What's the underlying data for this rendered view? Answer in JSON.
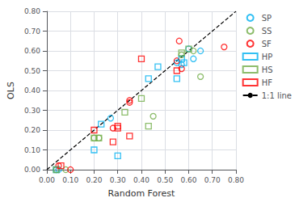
{
  "chart_data": {
    "type": "scatter",
    "xlabel": "Random Forest",
    "ylabel": "OLS",
    "series": [
      {
        "name": "SP",
        "color": "#00b0f0",
        "marker": "circle",
        "x": [
          0.04,
          0.05,
          0.27,
          0.55,
          0.57,
          0.6,
          0.62,
          0.65
        ],
        "values": [
          0.0,
          0.0,
          0.26,
          0.54,
          0.53,
          0.61,
          0.56,
          0.6
        ]
      },
      {
        "name": "SS",
        "color": "#70ad47",
        "marker": "circle",
        "x": [
          0.04,
          0.08,
          0.2,
          0.22,
          0.45,
          0.57,
          0.62,
          0.65
        ],
        "values": [
          0.0,
          0.0,
          0.16,
          0.16,
          0.27,
          0.58,
          0.6,
          0.47
        ]
      },
      {
        "name": "SF",
        "color": "#ff0000",
        "marker": "circle",
        "x": [
          0.05,
          0.1,
          0.28,
          0.35,
          0.35,
          0.55,
          0.56,
          0.57,
          0.75
        ],
        "values": [
          0.02,
          0.0,
          0.21,
          0.35,
          0.34,
          0.55,
          0.65,
          0.51,
          0.62
        ]
      },
      {
        "name": "HP",
        "color": "#00b0f0",
        "marker": "square",
        "x": [
          0.04,
          0.2,
          0.23,
          0.3,
          0.43,
          0.47,
          0.55,
          0.57,
          0.58
        ],
        "values": [
          0.0,
          0.1,
          0.23,
          0.07,
          0.46,
          0.52,
          0.46,
          0.56,
          0.54
        ]
      },
      {
        "name": "HS",
        "color": "#70ad47",
        "marker": "square",
        "x": [
          0.04,
          0.2,
          0.22,
          0.33,
          0.4,
          0.43,
          0.57,
          0.6
        ],
        "values": [
          0.0,
          0.16,
          0.16,
          0.29,
          0.36,
          0.22,
          0.59,
          0.61
        ]
      },
      {
        "name": "HF",
        "color": "#ff0000",
        "marker": "square",
        "x": [
          0.06,
          0.2,
          0.28,
          0.3,
          0.3,
          0.35,
          0.4,
          0.55
        ],
        "values": [
          0.02,
          0.2,
          0.14,
          0.21,
          0.22,
          0.17,
          0.56,
          0.5
        ]
      },
      {
        "name": "1:1 line",
        "type": "line",
        "line_style": "dashed",
        "color": "#000000",
        "x": [
          0,
          0.8
        ],
        "values": [
          0,
          0.8
        ]
      }
    ],
    "xlim": [
      0.0,
      0.8
    ],
    "ylim": [
      0.0,
      0.8
    ],
    "xticks": [
      {
        "value": 0.0,
        "label": "0.00"
      },
      {
        "value": 0.1,
        "label": "0.10"
      },
      {
        "value": 0.2,
        "label": "0.20"
      },
      {
        "value": 0.3,
        "label": "0.30"
      },
      {
        "value": 0.4,
        "label": "0.40"
      },
      {
        "value": 0.5,
        "label": "0.50"
      },
      {
        "value": 0.6,
        "label": "0.60"
      },
      {
        "value": 0.7,
        "label": "0.70"
      },
      {
        "value": 0.8,
        "label": "0.80"
      }
    ],
    "yticks": [
      {
        "value": 0.0,
        "label": "0.00"
      },
      {
        "value": 0.1,
        "label": "0.10"
      },
      {
        "value": 0.2,
        "label": "0.20"
      },
      {
        "value": 0.3,
        "label": "0.30"
      },
      {
        "value": 0.4,
        "label": "0.40"
      },
      {
        "value": 0.5,
        "label": "0.50"
      },
      {
        "value": 0.6,
        "label": "0.60"
      },
      {
        "value": 0.7,
        "label": "0.70"
      },
      {
        "value": 0.8,
        "label": "0.80"
      }
    ],
    "grid": true,
    "legend": "upper right"
  }
}
